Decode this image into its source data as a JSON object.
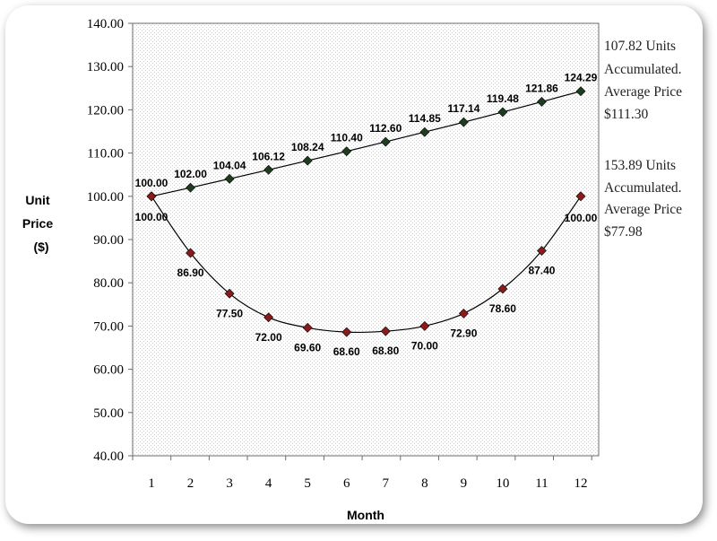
{
  "chart_data": {
    "type": "line",
    "title": "",
    "xlabel": "Month",
    "ylabel_lines": [
      "Unit",
      "Price",
      "($)"
    ],
    "x": [
      1,
      2,
      3,
      4,
      5,
      6,
      7,
      8,
      9,
      10,
      11,
      12
    ],
    "ylim": [
      40,
      140
    ],
    "yticks": [
      "40.00",
      "50.00",
      "60.00",
      "70.00",
      "80.00",
      "90.00",
      "100.00",
      "110.00",
      "120.00",
      "130.00",
      "140.00"
    ],
    "grid": false,
    "series": [
      {
        "color": "#1e3d1e",
        "values": [
          100.0,
          102.0,
          104.04,
          106.12,
          108.24,
          110.4,
          112.6,
          114.85,
          117.14,
          119.48,
          121.86,
          124.29
        ],
        "labels": [
          "100.00",
          "102.00",
          "104.04",
          "106.12",
          "108.24",
          "110.40",
          "112.60",
          "114.85",
          "117.14",
          "119.48",
          "121.86",
          "124.29"
        ],
        "label_position": "above",
        "annotation": [
          "107.82 Units",
          "Accumulated.",
          "Average Price",
          "$111.30"
        ]
      },
      {
        "color": "#8b1a1a",
        "values": [
          100.0,
          86.9,
          77.5,
          72.0,
          69.6,
          68.6,
          68.8,
          70.0,
          72.9,
          78.6,
          87.4,
          100.0
        ],
        "labels": [
          "100.00",
          "86.90",
          "77.50",
          "72.00",
          "69.60",
          "68.60",
          "68.80",
          "70.00",
          "72.90",
          "78.60",
          "87.40",
          "100.00"
        ],
        "label_position": "below",
        "annotation": [
          "153.89 Units",
          "Accumulated.",
          "Average Price",
          "$77.98"
        ]
      }
    ]
  }
}
